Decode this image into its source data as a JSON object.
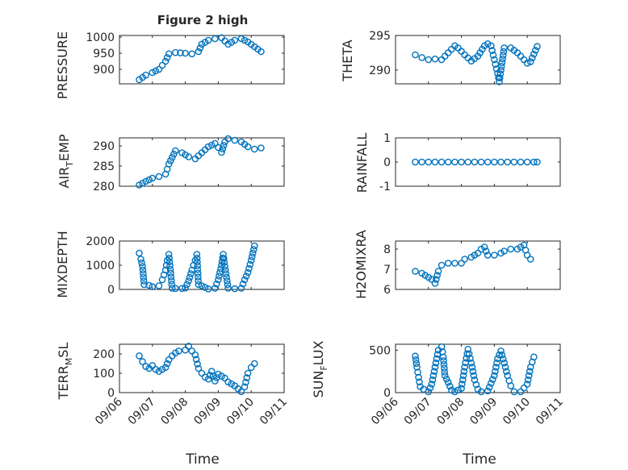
{
  "chart_data": [
    {
      "type": "scatter",
      "title": "Figure 2 high",
      "ylabel": "PRESSURE",
      "ylim": [
        855,
        1005
      ],
      "yticks": [
        {
          "v": 900,
          "label": "900"
        },
        {
          "v": 950,
          "label": "950"
        },
        {
          "v": 1000,
          "label": "1000"
        }
      ],
      "points": [
        [
          6.6,
          868
        ],
        [
          6.8,
          882
        ],
        [
          7.0,
          890
        ],
        [
          7.2,
          900
        ],
        [
          7.4,
          925
        ],
        [
          7.5,
          948
        ],
        [
          7.7,
          952
        ],
        [
          8.0,
          950
        ],
        [
          8.2,
          948
        ],
        [
          8.4,
          955
        ],
        [
          8.5,
          978
        ],
        [
          8.7,
          990
        ],
        [
          8.9,
          995
        ],
        [
          9.1,
          998
        ],
        [
          9.3,
          978
        ],
        [
          9.5,
          990
        ],
        [
          9.7,
          995
        ],
        [
          9.9,
          985
        ],
        [
          10.1,
          970
        ],
        [
          10.3,
          955
        ]
      ]
    },
    {
      "type": "scatter",
      "title": "",
      "ylabel": "THETA",
      "ylim": [
        288,
        295
      ],
      "yticks": [
        {
          "v": 290,
          "label": "290"
        },
        {
          "v": 295,
          "label": "295"
        }
      ],
      "points": [
        [
          6.6,
          292.2
        ],
        [
          6.8,
          291.8
        ],
        [
          7.0,
          291.5
        ],
        [
          7.2,
          291.6
        ],
        [
          7.4,
          291.5
        ],
        [
          7.6,
          292.5
        ],
        [
          7.8,
          293.5
        ],
        [
          7.9,
          293.2
        ],
        [
          8.1,
          292.2
        ],
        [
          8.3,
          291.3
        ],
        [
          8.5,
          292.0
        ],
        [
          8.7,
          293.5
        ],
        [
          8.8,
          293.8
        ],
        [
          8.9,
          293.5
        ],
        [
          9.0,
          291.5
        ],
        [
          9.1,
          289.5
        ],
        [
          9.15,
          288.3
        ],
        [
          9.2,
          290.0
        ],
        [
          9.3,
          293.2
        ],
        [
          9.5,
          293.2
        ],
        [
          9.7,
          292.5
        ],
        [
          9.9,
          291.5
        ],
        [
          10.0,
          291.0
        ],
        [
          10.1,
          291.2
        ],
        [
          10.2,
          292.3
        ],
        [
          10.3,
          293.4
        ]
      ]
    },
    {
      "type": "scatter",
      "title": "",
      "ylabel": "AIR_TEMP",
      "ylim": [
        280,
        292
      ],
      "yticks": [
        {
          "v": 280,
          "label": "280"
        },
        {
          "v": 285,
          "label": "285"
        },
        {
          "v": 290,
          "label": "290"
        }
      ],
      "points": [
        [
          6.6,
          280.3
        ],
        [
          6.8,
          281.2
        ],
        [
          7.0,
          282.0
        ],
        [
          7.2,
          282.4
        ],
        [
          7.4,
          283.0
        ],
        [
          7.5,
          285.5
        ],
        [
          7.7,
          288.8
        ],
        [
          7.9,
          288.3
        ],
        [
          8.1,
          287.3
        ],
        [
          8.3,
          286.8
        ],
        [
          8.5,
          288.3
        ],
        [
          8.7,
          289.8
        ],
        [
          8.9,
          290.6
        ],
        [
          9.0,
          289.6
        ],
        [
          9.1,
          288.4
        ],
        [
          9.2,
          291.0
        ],
        [
          9.3,
          291.8
        ],
        [
          9.5,
          291.4
        ],
        [
          9.7,
          291.0
        ],
        [
          9.9,
          289.8
        ],
        [
          10.1,
          289.2
        ],
        [
          10.3,
          289.5
        ]
      ]
    },
    {
      "type": "scatter",
      "title": "",
      "ylabel": "RAINFALL",
      "ylim": [
        -1,
        1
      ],
      "yticks": [
        {
          "v": -1,
          "label": "-1"
        },
        {
          "v": 0,
          "label": "0"
        },
        {
          "v": 1,
          "label": "1"
        }
      ],
      "points": [
        [
          6.6,
          0
        ],
        [
          6.8,
          0
        ],
        [
          7.0,
          0
        ],
        [
          7.2,
          0
        ],
        [
          7.4,
          0
        ],
        [
          7.6,
          0
        ],
        [
          7.8,
          0
        ],
        [
          8.0,
          0
        ],
        [
          8.2,
          0
        ],
        [
          8.4,
          0
        ],
        [
          8.6,
          0
        ],
        [
          8.8,
          0
        ],
        [
          9.0,
          0
        ],
        [
          9.2,
          0
        ],
        [
          9.4,
          0
        ],
        [
          9.6,
          0
        ],
        [
          9.8,
          0
        ],
        [
          10.0,
          0
        ],
        [
          10.2,
          0
        ],
        [
          10.3,
          0
        ]
      ]
    },
    {
      "type": "scatter",
      "title": "",
      "ylabel": "MIXDEPTH",
      "ylim": [
        0,
        2000
      ],
      "yticks": [
        {
          "v": 0,
          "label": "0"
        },
        {
          "v": 1000,
          "label": "1000"
        },
        {
          "v": 2000,
          "label": "2000"
        }
      ],
      "points": [
        [
          6.6,
          1500
        ],
        [
          6.65,
          1250
        ],
        [
          6.7,
          950
        ],
        [
          6.75,
          200
        ],
        [
          6.9,
          170
        ],
        [
          7.0,
          110
        ],
        [
          7.2,
          150
        ],
        [
          7.3,
          400
        ],
        [
          7.4,
          800
        ],
        [
          7.45,
          1200
        ],
        [
          7.5,
          1450
        ],
        [
          7.6,
          50
        ],
        [
          7.7,
          40
        ],
        [
          7.9,
          40
        ],
        [
          8.0,
          60
        ],
        [
          8.1,
          350
        ],
        [
          8.2,
          800
        ],
        [
          8.3,
          1200
        ],
        [
          8.35,
          1450
        ],
        [
          8.4,
          200
        ],
        [
          8.5,
          150
        ],
        [
          8.7,
          20
        ],
        [
          8.9,
          50
        ],
        [
          9.0,
          400
        ],
        [
          9.1,
          1000
        ],
        [
          9.15,
          1450
        ],
        [
          9.2,
          950
        ],
        [
          9.3,
          50
        ],
        [
          9.5,
          30
        ],
        [
          9.7,
          50
        ],
        [
          9.8,
          400
        ],
        [
          9.9,
          700
        ],
        [
          10.0,
          1200
        ],
        [
          10.1,
          1800
        ]
      ]
    },
    {
      "type": "scatter",
      "title": "",
      "ylabel": "H2OMIXRA",
      "ylim": [
        6,
        8.4
      ],
      "yticks": [
        {
          "v": 6,
          "label": "6"
        },
        {
          "v": 7,
          "label": "7"
        },
        {
          "v": 8,
          "label": "8"
        }
      ],
      "points": [
        [
          6.6,
          6.9
        ],
        [
          6.8,
          6.8
        ],
        [
          7.0,
          6.6
        ],
        [
          7.1,
          6.5
        ],
        [
          7.2,
          6.3
        ],
        [
          7.3,
          6.9
        ],
        [
          7.4,
          7.2
        ],
        [
          7.6,
          7.3
        ],
        [
          7.8,
          7.3
        ],
        [
          8.0,
          7.3
        ],
        [
          8.1,
          7.5
        ],
        [
          8.3,
          7.6
        ],
        [
          8.5,
          7.8
        ],
        [
          8.6,
          8.0
        ],
        [
          8.7,
          8.1
        ],
        [
          8.8,
          7.7
        ],
        [
          9.0,
          7.7
        ],
        [
          9.2,
          7.8
        ],
        [
          9.3,
          7.9
        ],
        [
          9.5,
          8.0
        ],
        [
          9.7,
          8.0
        ],
        [
          9.9,
          8.2
        ],
        [
          10.0,
          7.7
        ],
        [
          10.1,
          7.5
        ]
      ]
    },
    {
      "type": "scatter",
      "title": "",
      "ylabel": "TERR_MSL",
      "ylim": [
        0,
        250
      ],
      "yticks": [
        {
          "v": 0,
          "label": "0"
        },
        {
          "v": 100,
          "label": "100"
        },
        {
          "v": 200,
          "label": "200"
        }
      ],
      "points": [
        [
          6.6,
          190
        ],
        [
          6.7,
          160
        ],
        [
          6.8,
          135
        ],
        [
          6.9,
          125
        ],
        [
          7.0,
          140
        ],
        [
          7.1,
          120
        ],
        [
          7.2,
          110
        ],
        [
          7.3,
          120
        ],
        [
          7.4,
          130
        ],
        [
          7.5,
          170
        ],
        [
          7.6,
          190
        ],
        [
          7.7,
          205
        ],
        [
          7.8,
          215
        ],
        [
          8.0,
          220
        ],
        [
          8.1,
          240
        ],
        [
          8.2,
          215
        ],
        [
          8.3,
          195
        ],
        [
          8.4,
          125
        ],
        [
          8.5,
          100
        ],
        [
          8.6,
          80
        ],
        [
          8.7,
          70
        ],
        [
          8.8,
          110
        ],
        [
          8.9,
          60
        ],
        [
          9.0,
          95
        ],
        [
          9.2,
          75
        ],
        [
          9.3,
          55
        ],
        [
          9.5,
          35
        ],
        [
          9.6,
          20
        ],
        [
          9.7,
          5
        ],
        [
          9.8,
          30
        ],
        [
          9.9,
          100
        ],
        [
          10.0,
          130
        ],
        [
          10.1,
          150
        ]
      ]
    },
    {
      "type": "scatter",
      "title": "",
      "ylabel": "SUN_FLUX",
      "ylim": [
        0,
        570
      ],
      "yticks": [
        {
          "v": 0,
          "label": "0"
        },
        {
          "v": 500,
          "label": "500"
        }
      ],
      "points": [
        [
          6.6,
          430
        ],
        [
          6.65,
          300
        ],
        [
          6.7,
          180
        ],
        [
          6.75,
          70
        ],
        [
          6.85,
          40
        ],
        [
          7.0,
          10
        ],
        [
          7.1,
          100
        ],
        [
          7.2,
          300
        ],
        [
          7.3,
          500
        ],
        [
          7.4,
          540
        ],
        [
          7.45,
          420
        ],
        [
          7.5,
          200
        ],
        [
          7.6,
          120
        ],
        [
          7.7,
          30
        ],
        [
          7.8,
          10
        ],
        [
          8.0,
          50
        ],
        [
          8.1,
          300
        ],
        [
          8.2,
          510
        ],
        [
          8.3,
          350
        ],
        [
          8.4,
          150
        ],
        [
          8.5,
          40
        ],
        [
          8.6,
          10
        ],
        [
          8.8,
          20
        ],
        [
          9.0,
          200
        ],
        [
          9.1,
          400
        ],
        [
          9.2,
          490
        ],
        [
          9.3,
          350
        ],
        [
          9.4,
          200
        ],
        [
          9.5,
          80
        ],
        [
          9.6,
          10
        ],
        [
          9.8,
          10
        ],
        [
          10.0,
          100
        ],
        [
          10.1,
          300
        ],
        [
          10.2,
          420
        ]
      ]
    }
  ],
  "xaxis": {
    "label": "Time",
    "xlim": [
      6.0,
      11.0
    ],
    "ticks": [
      {
        "v": 6,
        "label": "09/06"
      },
      {
        "v": 7,
        "label": "09/07"
      },
      {
        "v": 8,
        "label": "09/08"
      },
      {
        "v": 9,
        "label": "09/09"
      },
      {
        "v": 10,
        "label": "09/10"
      },
      {
        "v": 11,
        "label": "09/11"
      }
    ]
  },
  "ylabels": {
    "air_temp": {
      "main": "AIR",
      "sub": "T",
      "rest": "EMP"
    },
    "terr_msl": {
      "main": "TERR",
      "sub": "M",
      "rest": "SL"
    },
    "sun_flux": {
      "main": "SUN",
      "sub": "F",
      "rest": "LUX"
    }
  },
  "colors": {
    "marker": "#0072BD",
    "axis": "#262626",
    "grid": "#b8b8b8"
  }
}
